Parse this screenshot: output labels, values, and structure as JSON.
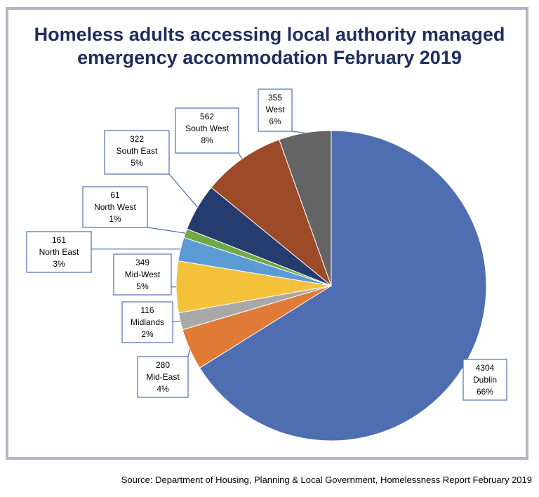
{
  "title_lines": [
    "Homeless adults accessing local authority managed",
    "emergency accommodation February 2019"
  ],
  "source": "Source: Department of Housing, Planning & Local Government, Homelessness Report February 2019",
  "chart_data": {
    "type": "pie",
    "slices": [
      {
        "name": "Dublin",
        "value": 4304,
        "percent": "66%",
        "color": "#4f6eb2"
      },
      {
        "name": "Mid-East",
        "value": 280,
        "percent": "4%",
        "color": "#df7a37"
      },
      {
        "name": "Midlands",
        "value": 116,
        "percent": "2%",
        "color": "#a8a8a8"
      },
      {
        "name": "Mid-West",
        "value": 349,
        "percent": "5%",
        "color": "#f4c13a"
      },
      {
        "name": "North East",
        "value": 161,
        "percent": "3%",
        "color": "#5b9bd5"
      },
      {
        "name": "North West",
        "value": 61,
        "percent": "1%",
        "color": "#6fa844"
      },
      {
        "name": "South East",
        "value": 322,
        "percent": "5%",
        "color": "#263c6e"
      },
      {
        "name": "South West",
        "value": 562,
        "percent": "8%",
        "color": "#9c4a27"
      },
      {
        "name": "West",
        "value": 355,
        "percent": "6%",
        "color": "#646464"
      }
    ]
  }
}
